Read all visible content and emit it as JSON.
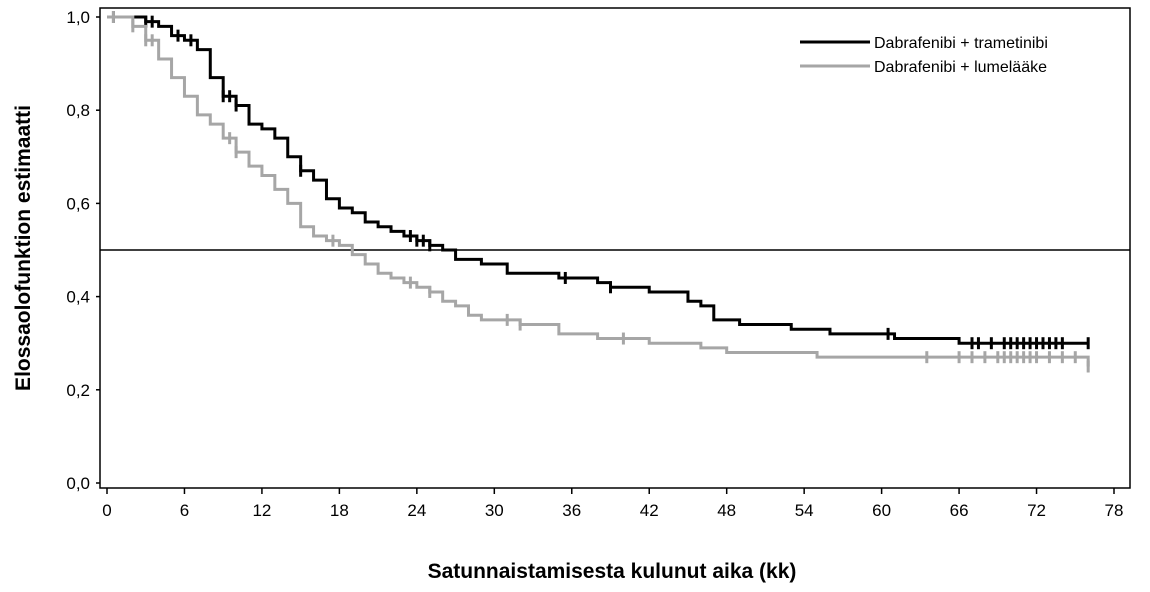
{
  "chart_data": {
    "type": "line",
    "title": "",
    "xlabel": "Satunnaistamisesta kulunut aika (kk)",
    "ylabel": "Elossaolofunktion estimaatti",
    "xlim": [
      0,
      78
    ],
    "ylim": [
      0.0,
      1.0
    ],
    "x_ticks": [
      "0",
      "6",
      "12",
      "18",
      "24",
      "30",
      "36",
      "42",
      "48",
      "54",
      "60",
      "66",
      "72",
      "78"
    ],
    "y_ticks": [
      "0,0",
      "0,2",
      "0,4",
      "0,6",
      "0,8",
      "1,0"
    ],
    "grid": false,
    "legend_position": "top-right",
    "reference_line_y": 0.5,
    "series": [
      {
        "name": "Dabrafenibi + trametinibi",
        "color": "#000000",
        "steps": [
          [
            0,
            1.0
          ],
          [
            3,
            0.99
          ],
          [
            4,
            0.98
          ],
          [
            5,
            0.96
          ],
          [
            6,
            0.95
          ],
          [
            7,
            0.93
          ],
          [
            8,
            0.87
          ],
          [
            9,
            0.83
          ],
          [
            10,
            0.81
          ],
          [
            11,
            0.77
          ],
          [
            12,
            0.76
          ],
          [
            13,
            0.74
          ],
          [
            14,
            0.7
          ],
          [
            15,
            0.67
          ],
          [
            16,
            0.65
          ],
          [
            17,
            0.61
          ],
          [
            18,
            0.59
          ],
          [
            19,
            0.58
          ],
          [
            20,
            0.56
          ],
          [
            21,
            0.55
          ],
          [
            22,
            0.54
          ],
          [
            23,
            0.53
          ],
          [
            24,
            0.52
          ],
          [
            25,
            0.51
          ],
          [
            26,
            0.5
          ],
          [
            27,
            0.48
          ],
          [
            29,
            0.47
          ],
          [
            31,
            0.45
          ],
          [
            35,
            0.44
          ],
          [
            38,
            0.43
          ],
          [
            39,
            0.42
          ],
          [
            42,
            0.41
          ],
          [
            45,
            0.39
          ],
          [
            46,
            0.38
          ],
          [
            47,
            0.35
          ],
          [
            49,
            0.34
          ],
          [
            53,
            0.33
          ],
          [
            56,
            0.32
          ],
          [
            61,
            0.31
          ],
          [
            66,
            0.3
          ],
          [
            76,
            0.3
          ]
        ],
        "censor_marks": [
          0.5,
          3,
          3.5,
          5.5,
          6.5,
          9,
          9.5,
          10,
          15,
          23.5,
          24,
          24.5,
          25,
          35.5,
          39,
          60.5,
          67,
          67.5,
          68.5,
          69.5,
          70,
          70.5,
          71,
          71.5,
          72,
          72.5,
          73,
          73.5,
          74,
          76
        ]
      },
      {
        "name": "Dabrafenibi + lumelääke",
        "color": "#a6a6a6",
        "steps": [
          [
            0,
            1.0
          ],
          [
            2,
            0.98
          ],
          [
            3,
            0.95
          ],
          [
            4,
            0.91
          ],
          [
            5,
            0.87
          ],
          [
            6,
            0.83
          ],
          [
            7,
            0.79
          ],
          [
            8,
            0.77
          ],
          [
            9,
            0.74
          ],
          [
            10,
            0.71
          ],
          [
            11,
            0.68
          ],
          [
            12,
            0.66
          ],
          [
            13,
            0.63
          ],
          [
            14,
            0.6
          ],
          [
            15,
            0.55
          ],
          [
            16,
            0.53
          ],
          [
            17,
            0.52
          ],
          [
            18,
            0.51
          ],
          [
            19,
            0.49
          ],
          [
            20,
            0.47
          ],
          [
            21,
            0.45
          ],
          [
            22,
            0.44
          ],
          [
            23,
            0.43
          ],
          [
            24,
            0.42
          ],
          [
            25,
            0.41
          ],
          [
            26,
            0.39
          ],
          [
            27,
            0.38
          ],
          [
            28,
            0.36
          ],
          [
            29,
            0.35
          ],
          [
            32,
            0.34
          ],
          [
            35,
            0.32
          ],
          [
            38,
            0.31
          ],
          [
            42,
            0.3
          ],
          [
            46,
            0.29
          ],
          [
            48,
            0.28
          ],
          [
            55,
            0.27
          ],
          [
            76,
            0.25
          ]
        ],
        "censor_marks": [
          0.5,
          2,
          3,
          3.5,
          9.5,
          10,
          17.5,
          23.5,
          25,
          31,
          32,
          40,
          63.5,
          66,
          67,
          68,
          69,
          69.5,
          70,
          70.5,
          71,
          71.5,
          72,
          73,
          74,
          75,
          76
        ]
      }
    ]
  }
}
